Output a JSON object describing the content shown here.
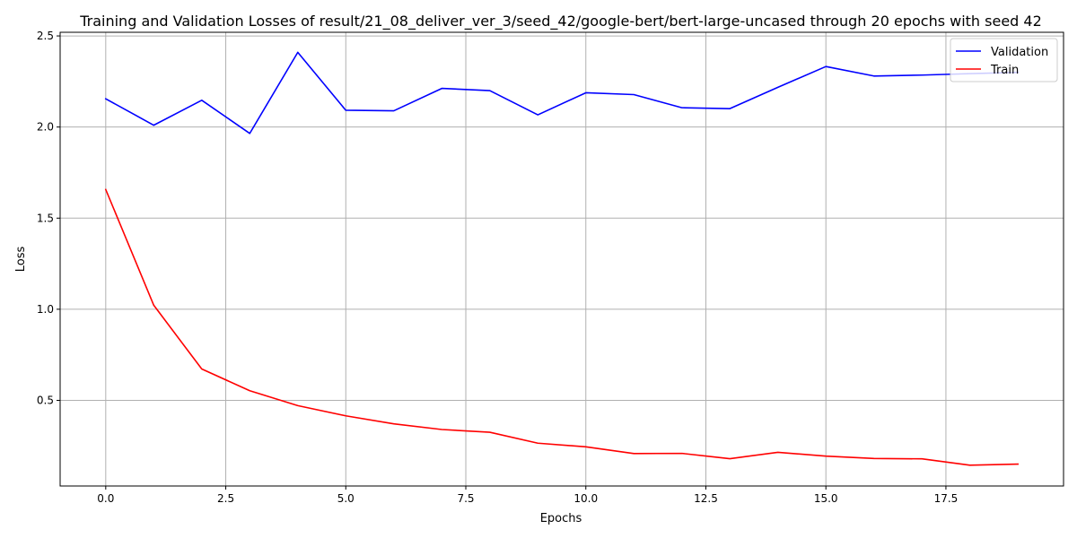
{
  "chart_data": {
    "type": "line",
    "title": "Training and Validation Losses of result/21_08_deliver_ver_3/seed_42/google-bert/bert-large-uncased through 20 epochs with seed 42",
    "xlabel": "Epochs",
    "ylabel": "Loss",
    "xlim": [
      -0.95,
      19.95
    ],
    "ylim": [
      0.03,
      2.52
    ],
    "x_ticks": [
      0.0,
      2.5,
      5.0,
      7.5,
      10.0,
      12.5,
      15.0,
      17.5
    ],
    "x_tick_labels": [
      "0.0",
      "2.5",
      "5.0",
      "7.5",
      "10.0",
      "12.5",
      "15.0",
      "17.5"
    ],
    "y_ticks": [
      0.5,
      1.0,
      1.5,
      2.0,
      2.5
    ],
    "y_tick_labels": [
      "0.5",
      "1.0",
      "1.5",
      "2.0",
      "2.5"
    ],
    "grid": true,
    "legend_position": "upper-right",
    "x": [
      0,
      1,
      2,
      3,
      4,
      5,
      6,
      7,
      8,
      9,
      10,
      11,
      12,
      13,
      14,
      15,
      16,
      17,
      18,
      19
    ],
    "series": [
      {
        "name": "Validation",
        "color": "#0000ff",
        "values": [
          2.155,
          2.01,
          2.147,
          1.965,
          2.41,
          2.092,
          2.089,
          2.212,
          2.2,
          2.067,
          2.188,
          2.178,
          2.106,
          2.101,
          2.218,
          2.332,
          2.28,
          2.285,
          2.293,
          2.3
        ]
      },
      {
        "name": "Train",
        "color": "#ff0000",
        "values": [
          1.657,
          1.022,
          0.672,
          0.553,
          0.471,
          0.415,
          0.371,
          0.34,
          0.325,
          0.265,
          0.245,
          0.208,
          0.209,
          0.18,
          0.215,
          0.194,
          0.181,
          0.179,
          0.144,
          0.15
        ]
      }
    ]
  }
}
